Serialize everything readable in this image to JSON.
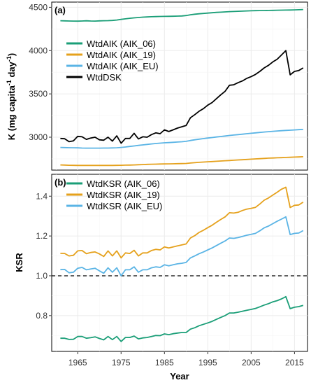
{
  "chart_data": [
    {
      "type": "line",
      "panel_label": "(a)",
      "ylabel": "K (mg capita",
      "ylabel_sup1": "-1",
      "ylabel_mid": " day",
      "ylabel_sup2": "-1",
      "ylabel_end": ")",
      "xlabel": "",
      "xlim": [
        1959,
        2018
      ],
      "ylim": [
        2620,
        4560
      ],
      "y_ticks": [
        3000,
        3500,
        4000,
        4500
      ],
      "grid": true,
      "legend_position": "top-left",
      "x": [
        1961,
        1962,
        1963,
        1964,
        1965,
        1966,
        1967,
        1968,
        1969,
        1970,
        1971,
        1972,
        1973,
        1974,
        1975,
        1976,
        1977,
        1978,
        1979,
        1980,
        1981,
        1982,
        1983,
        1984,
        1985,
        1986,
        1987,
        1988,
        1989,
        1990,
        1991,
        1992,
        1993,
        1994,
        1995,
        1996,
        1997,
        1998,
        1999,
        2000,
        2001,
        2002,
        2003,
        2004,
        2005,
        2006,
        2007,
        2008,
        2009,
        2010,
        2011,
        2012,
        2013,
        2014,
        2015,
        2016,
        2017
      ],
      "series": [
        {
          "name": "WtdAIK (AIK_06)",
          "color": "#1a9e77",
          "values": [
            4345,
            4343,
            4342,
            4341,
            4340,
            4342,
            4344,
            4342,
            4341,
            4343,
            4345,
            4346,
            4348,
            4353,
            4360,
            4367,
            4373,
            4378,
            4382,
            4386,
            4389,
            4391,
            4393,
            4394,
            4395,
            4396,
            4397,
            4398,
            4400,
            4405,
            4414,
            4420,
            4425,
            4429,
            4433,
            4437,
            4441,
            4444,
            4447,
            4450,
            4452,
            4454,
            4456,
            4458,
            4460,
            4461,
            4462,
            4463,
            4464,
            4465,
            4466,
            4467,
            4468,
            4469,
            4470,
            4472,
            4474
          ]
        },
        {
          "name": "WtdAIK (AIK_19)",
          "color": "#e5a11c",
          "values": [
            2680,
            2678,
            2676,
            2675,
            2674,
            2674,
            2674,
            2674,
            2674,
            2674,
            2674,
            2674,
            2674,
            2675,
            2676,
            2677,
            2678,
            2680,
            2682,
            2684,
            2686,
            2688,
            2689,
            2690,
            2691,
            2692,
            2693,
            2694,
            2695,
            2697,
            2702,
            2706,
            2710,
            2713,
            2716,
            2719,
            2722,
            2725,
            2728,
            2731,
            2734,
            2737,
            2740,
            2743,
            2746,
            2749,
            2752,
            2755,
            2758,
            2760,
            2762,
            2764,
            2766,
            2768,
            2770,
            2772,
            2774
          ]
        },
        {
          "name": "WtdAIK (AIK_EU)",
          "color": "#5ab4e5",
          "values": [
            2882,
            2880,
            2879,
            2878,
            2877,
            2875,
            2874,
            2874,
            2874,
            2874,
            2875,
            2875,
            2876,
            2878,
            2882,
            2887,
            2893,
            2899,
            2905,
            2911,
            2917,
            2922,
            2927,
            2931,
            2935,
            2938,
            2941,
            2944,
            2947,
            2952,
            2962,
            2970,
            2977,
            2984,
            2990,
            2996,
            3002,
            3008,
            3014,
            3020,
            3025,
            3030,
            3035,
            3040,
            3045,
            3050,
            3055,
            3060,
            3064,
            3068,
            3072,
            3075,
            3078,
            3081,
            3084,
            3087,
            3090
          ]
        },
        {
          "name": "WtdDSK",
          "color": "#000000",
          "values": [
            2985,
            2982,
            2948,
            2958,
            3010,
            3005,
            2975,
            2990,
            3000,
            2970,
            2965,
            3000,
            2955,
            3015,
            2930,
            2985,
            2985,
            3045,
            2980,
            3005,
            3000,
            3030,
            3050,
            3040,
            3085,
            3065,
            3085,
            3105,
            3120,
            3135,
            3225,
            3260,
            3300,
            3330,
            3370,
            3400,
            3445,
            3490,
            3530,
            3600,
            3605,
            3630,
            3650,
            3680,
            3700,
            3725,
            3760,
            3800,
            3830,
            3870,
            3900,
            3950,
            4000,
            3720,
            3760,
            3770,
            3800
          ]
        }
      ]
    },
    {
      "type": "line",
      "panel_label": "(b)",
      "ylabel": "KSR",
      "xlabel": "Year",
      "xlim": [
        1959,
        2018
      ],
      "ylim": [
        0.62,
        1.51
      ],
      "y_ticks": [
        0.8,
        1.0,
        1.2,
        1.4
      ],
      "x_ticks": [
        1965,
        1975,
        1985,
        1995,
        2005,
        2015
      ],
      "reference_line": 1.0,
      "grid": true,
      "legend_position": "top-left",
      "x": [
        1961,
        1962,
        1963,
        1964,
        1965,
        1966,
        1967,
        1968,
        1969,
        1970,
        1971,
        1972,
        1973,
        1974,
        1975,
        1976,
        1977,
        1978,
        1979,
        1980,
        1981,
        1982,
        1983,
        1984,
        1985,
        1986,
        1987,
        1988,
        1989,
        1990,
        1991,
        1992,
        1993,
        1994,
        1995,
        1996,
        1997,
        1998,
        1999,
        2000,
        2001,
        2002,
        2003,
        2004,
        2005,
        2006,
        2007,
        2008,
        2009,
        2010,
        2011,
        2012,
        2013,
        2014,
        2015,
        2016,
        2017
      ],
      "series": [
        {
          "name": "WtdKSR (AIK_06)",
          "color": "#1a9e77",
          "values": [
            0.686,
            0.686,
            0.68,
            0.681,
            0.695,
            0.695,
            0.686,
            0.689,
            0.693,
            0.685,
            0.678,
            0.695,
            0.679,
            0.695,
            0.67,
            0.69,
            0.69,
            0.697,
            0.683,
            0.688,
            0.69,
            0.695,
            0.7,
            0.699,
            0.708,
            0.704,
            0.709,
            0.712,
            0.715,
            0.715,
            0.732,
            0.739,
            0.749,
            0.756,
            0.763,
            0.771,
            0.781,
            0.791,
            0.8,
            0.813,
            0.813,
            0.817,
            0.822,
            0.827,
            0.831,
            0.836,
            0.844,
            0.853,
            0.86,
            0.869,
            0.875,
            0.884,
            0.895,
            0.835,
            0.842,
            0.845,
            0.851
          ]
        },
        {
          "name": "WtdKSR (AIK_19)",
          "color": "#e5a11c",
          "values": [
            1.113,
            1.112,
            1.1,
            1.103,
            1.125,
            1.127,
            1.111,
            1.117,
            1.12,
            1.11,
            1.097,
            1.125,
            1.1,
            1.125,
            1.09,
            1.115,
            1.112,
            1.128,
            1.1,
            1.115,
            1.115,
            1.127,
            1.133,
            1.13,
            1.145,
            1.14,
            1.145,
            1.15,
            1.155,
            1.16,
            1.19,
            1.202,
            1.218,
            1.229,
            1.242,
            1.254,
            1.269,
            1.283,
            1.296,
            1.317,
            1.315,
            1.319,
            1.328,
            1.335,
            1.339,
            1.344,
            1.361,
            1.38,
            1.391,
            1.406,
            1.42,
            1.435,
            1.445,
            1.343,
            1.354,
            1.356,
            1.37
          ]
        },
        {
          "name": "WtdKSR (AIK_EU)",
          "color": "#5ab4e5",
          "values": [
            1.031,
            1.032,
            1.015,
            1.018,
            1.038,
            1.042,
            1.03,
            1.034,
            1.038,
            1.025,
            1.013,
            1.04,
            1.018,
            1.04,
            1.0,
            1.03,
            1.03,
            1.045,
            1.018,
            1.03,
            1.03,
            1.04,
            1.045,
            1.042,
            1.055,
            1.05,
            1.055,
            1.06,
            1.063,
            1.067,
            1.09,
            1.1,
            1.111,
            1.12,
            1.13,
            1.14,
            1.152,
            1.164,
            1.175,
            1.19,
            1.188,
            1.192,
            1.198,
            1.204,
            1.208,
            1.213,
            1.226,
            1.241,
            1.25,
            1.262,
            1.274,
            1.285,
            1.296,
            1.207,
            1.213,
            1.215,
            1.227
          ]
        }
      ]
    }
  ]
}
